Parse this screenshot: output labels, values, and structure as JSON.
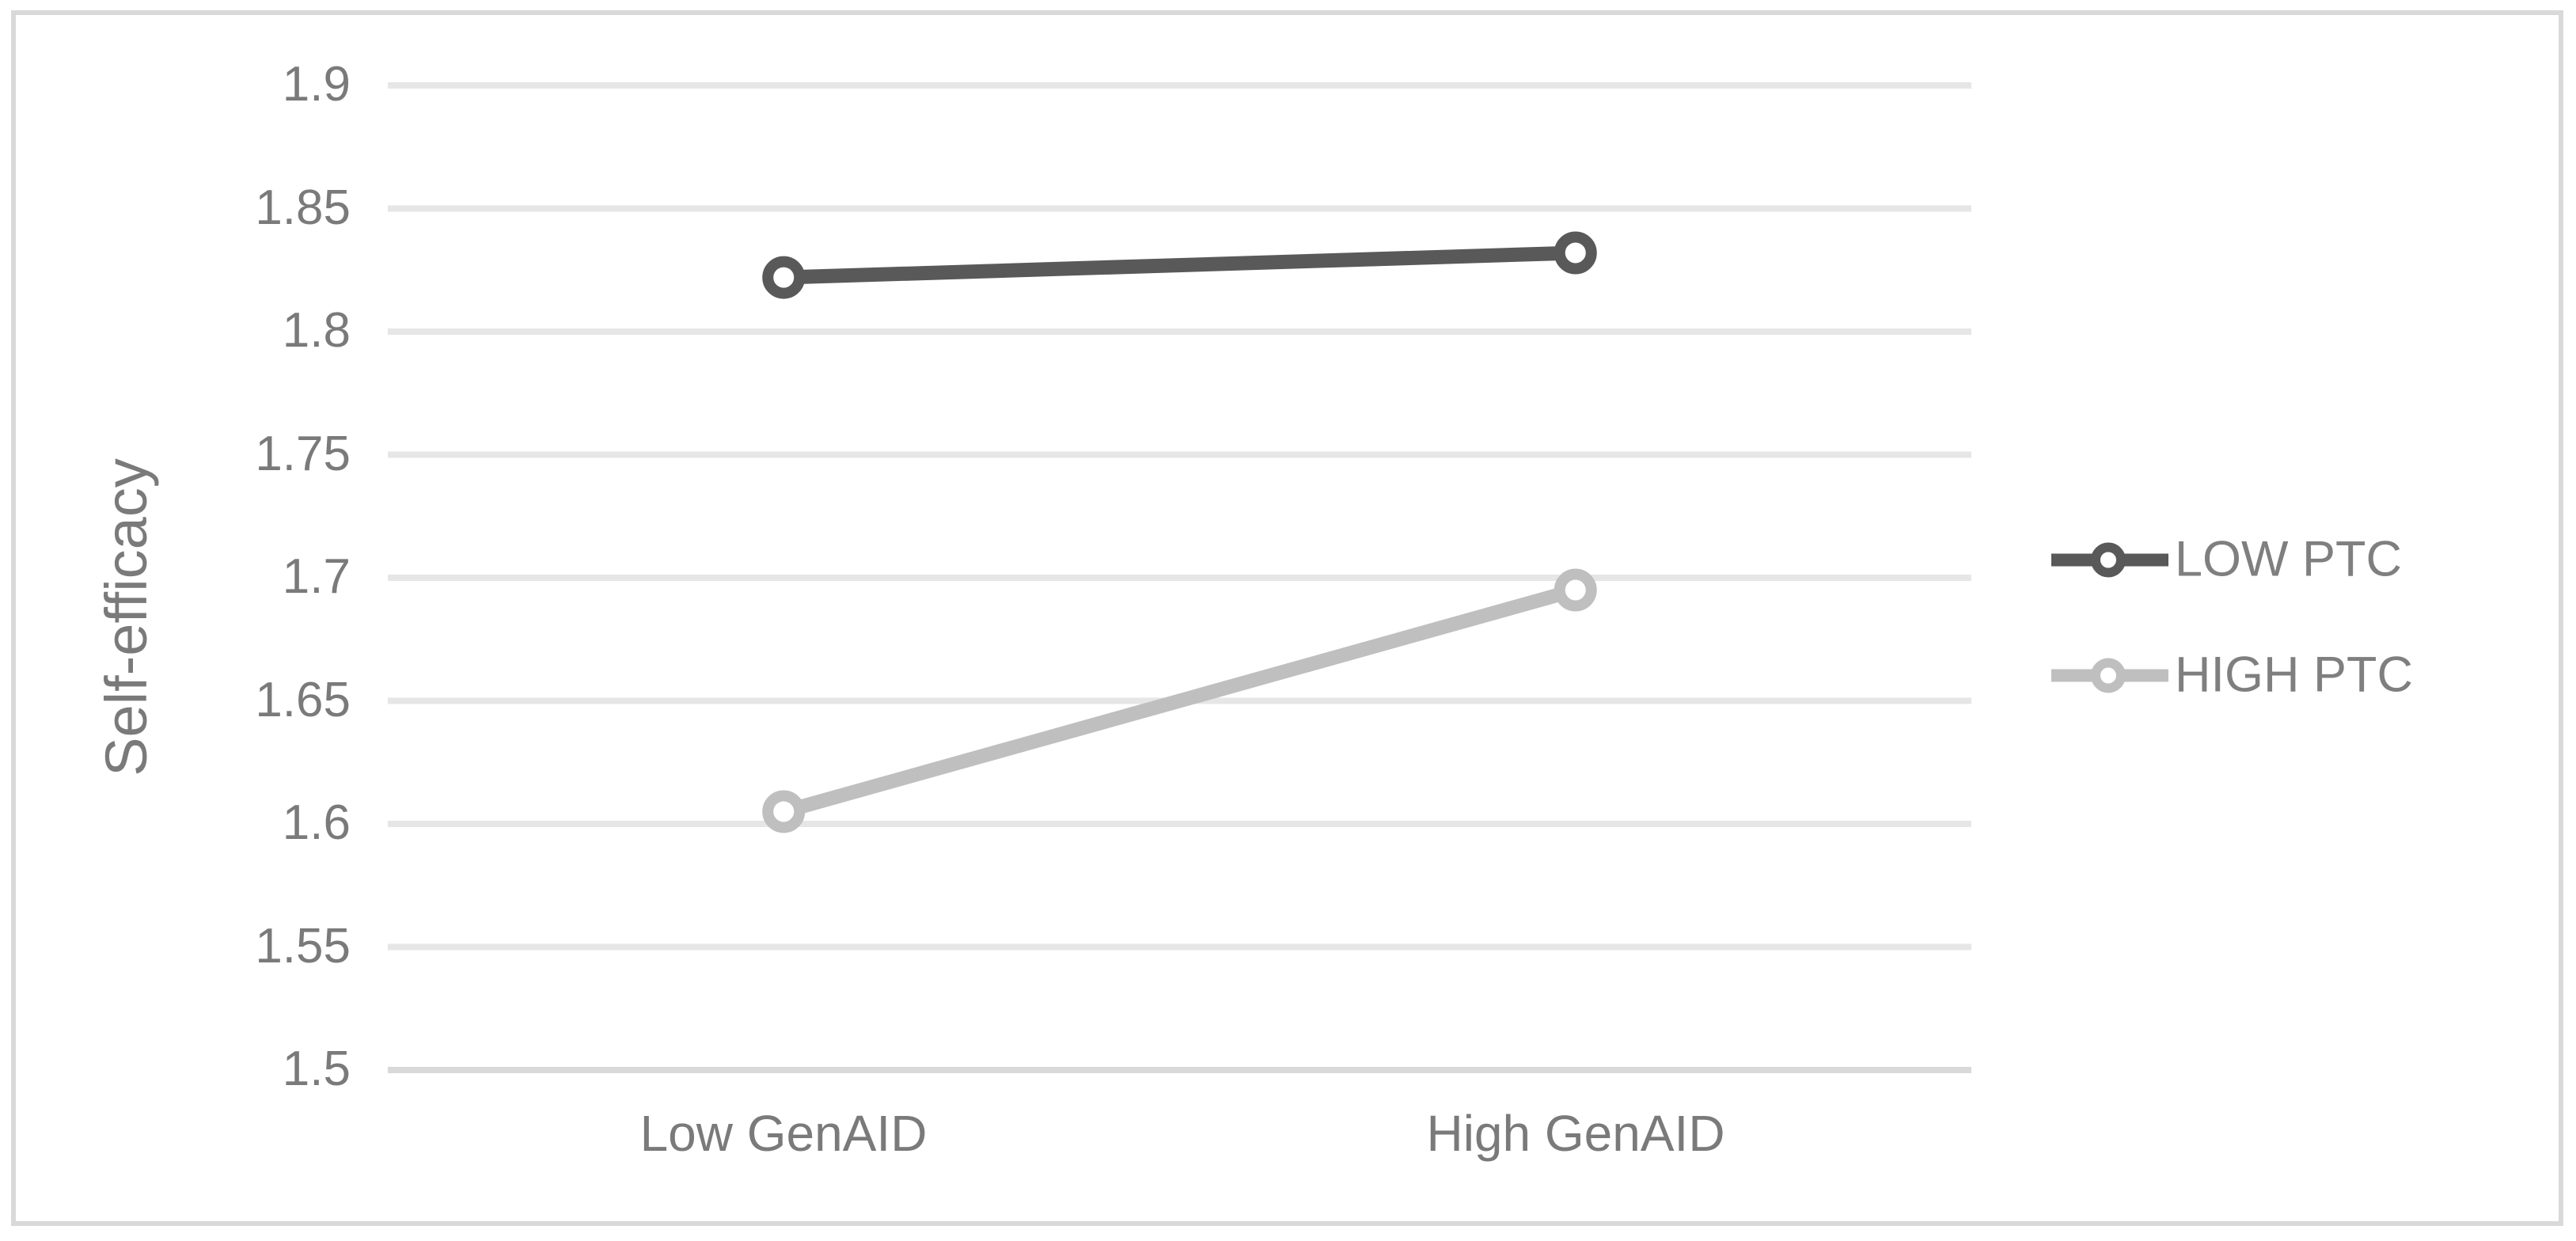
{
  "chart_data": {
    "type": "line",
    "categories": [
      "Low GenAID",
      "High GenAID"
    ],
    "series": [
      {
        "name": "LOW PTC",
        "values": [
          1.822,
          1.832
        ],
        "color": "#595959"
      },
      {
        "name": "HIGH PTC",
        "values": [
          1.605,
          1.695
        ],
        "color": "#bfbfbf"
      }
    ],
    "title": "",
    "xlabel": "",
    "ylabel": "Self-efficacy",
    "ylim": [
      1.5,
      1.9
    ],
    "ytick_step": 0.05,
    "ytick_labels": [
      "1.9",
      "1.85",
      "1.8",
      "1.75",
      "1.7",
      "1.65",
      "1.6",
      "1.55",
      "1.5"
    ],
    "grid": "horizontal",
    "marker_style": "open-circle",
    "legend": {
      "position": "right",
      "entries": [
        "LOW PTC",
        "HIGH PTC"
      ]
    }
  },
  "colors": {
    "background": "#ffffff",
    "frame_border": "#d9d9d9",
    "gridline": "#e6e6e6",
    "axis_line": "#d9d9d9",
    "tick_text": "#7a7a7a",
    "legend_text": "#7f7f7f"
  }
}
